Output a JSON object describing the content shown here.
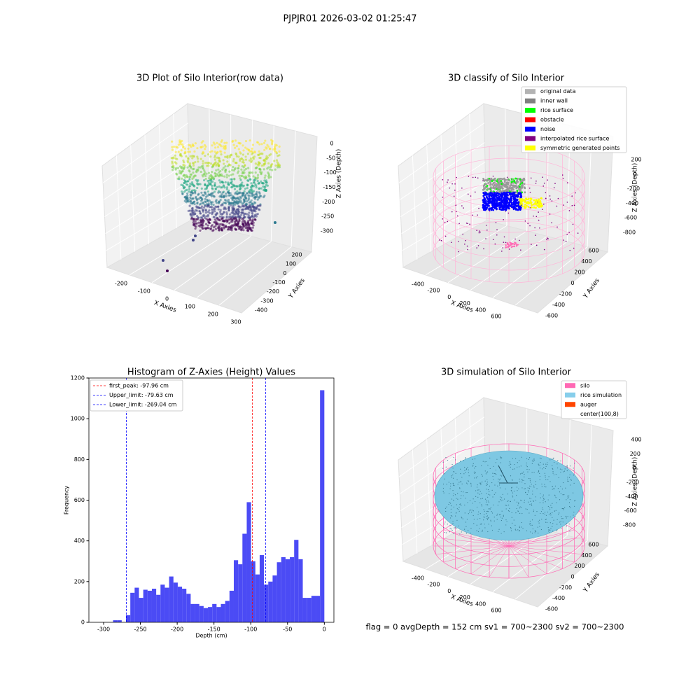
{
  "title": "PJPJR01 2026-03-02 01:25:47",
  "footer": "flag = 0     avgDepth = 152 cm  sv1 = 700~2300  sv2 = 700~2300",
  "chart_data": [
    {
      "type": "scatter3d",
      "title": "3D Plot of Silo Interior(row data)",
      "xlabel": "X Axies",
      "ylabel": "Y Axies",
      "zlabel": "Z Axies (Depth)",
      "xticks": [
        -200,
        -100,
        0,
        100,
        200,
        300
      ],
      "yticks": [
        200,
        100,
        0,
        -100,
        -200,
        -300,
        -400
      ],
      "zticks": [
        0,
        -50,
        -100,
        -150,
        -200,
        -250,
        -300
      ]
    },
    {
      "type": "scatter3d",
      "title": "3D classify of Silo Interior",
      "xlabel": "X Axies",
      "ylabel": "Y Axies",
      "zlabel": "Z Axies (Depth)",
      "xticks": [
        -400,
        -200,
        0,
        200,
        400,
        600
      ],
      "yticks": [
        600,
        400,
        200,
        0,
        -200,
        -400,
        -600
      ],
      "zticks": [
        200,
        0,
        -200,
        -400,
        -600,
        -800
      ],
      "series": [
        {
          "name": "original data",
          "color": "#b3b3b3"
        },
        {
          "name": "inner wall",
          "color": "#808080"
        },
        {
          "name": "rice surface",
          "color": "#00ff00"
        },
        {
          "name": "obstacle",
          "color": "#ff0000"
        },
        {
          "name": "noise",
          "color": "#0000ff"
        },
        {
          "name": "interpolated rice surface",
          "color": "#800080"
        },
        {
          "name": "symmetric generated points",
          "color": "#ffff00"
        }
      ]
    },
    {
      "type": "histogram",
      "title": "Histogram of Z-Axies (Height) Values",
      "xlabel": "Depth (cm)",
      "ylabel": "Frequency",
      "color": "#4b4bf5",
      "bins": [
        -287.14,
        -281.28,
        -275.42,
        -269.56,
        -263.7,
        -257.84,
        -251.98,
        -246.12,
        -240.26,
        -234.4,
        -228.54,
        -222.68,
        -216.82,
        -210.96,
        -205.1,
        -199.24,
        -193.38,
        -187.52,
        -181.66,
        -175.8,
        -169.94,
        -164.08,
        -158.22,
        -152.36,
        -146.5,
        -140.64,
        -134.78,
        -128.92,
        -123.06,
        -117.2,
        -111.34,
        -105.48,
        -99.62,
        -93.76,
        -87.9,
        -82.04,
        -76.18,
        -70.32,
        -64.46,
        -58.6,
        -52.74,
        -46.88,
        -41.02,
        -35.16,
        -29.3,
        -23.44,
        -17.58,
        -11.72,
        -5.86,
        0
      ],
      "values": [
        10,
        10,
        0,
        35,
        145,
        170,
        120,
        160,
        155,
        165,
        135,
        185,
        170,
        225,
        195,
        175,
        165,
        140,
        90,
        90,
        80,
        70,
        75,
        90,
        75,
        90,
        105,
        155,
        305,
        285,
        435,
        590,
        300,
        235,
        330,
        185,
        200,
        230,
        295,
        320,
        310,
        320,
        405,
        310,
        120,
        120,
        130,
        130,
        1140
      ],
      "xlim": [
        -320,
        13
      ],
      "xticks": [
        -300,
        -250,
        -200,
        -150,
        -100,
        -50,
        0
      ],
      "ylim": [
        0,
        1200
      ],
      "yticks": [
        0,
        200,
        400,
        600,
        800,
        1000,
        1200
      ],
      "lines": [
        {
          "name": "first_peak: -97.96 cm",
          "value": -97.96,
          "color": "#ff0000"
        },
        {
          "name": "Upper_limit: -79.63 cm",
          "value": -79.63,
          "color": "#0000ff"
        },
        {
          "name": "Lower_limit: -269.04 cm",
          "value": -269.04,
          "color": "#0000ff"
        }
      ]
    },
    {
      "type": "surface3d",
      "title": "3D simulation of Silo Interior",
      "xlabel": "X Axies",
      "ylabel": "Y Axies",
      "zlabel": "Z Axies (Depth)",
      "xticks": [
        -400,
        -200,
        0,
        200,
        400,
        600
      ],
      "yticks": [
        600,
        400,
        200,
        0,
        -200,
        -400,
        -600
      ],
      "zticks": [
        400,
        200,
        0,
        -200,
        -400,
        -600,
        -800
      ],
      "series": [
        {
          "name": "silo",
          "color": "#ff69b4"
        },
        {
          "name": "rice simulation",
          "color": "#87ceeb"
        },
        {
          "name": "auger",
          "color": "#ff4500"
        },
        {
          "name": "center(100,8)"
        }
      ]
    }
  ]
}
